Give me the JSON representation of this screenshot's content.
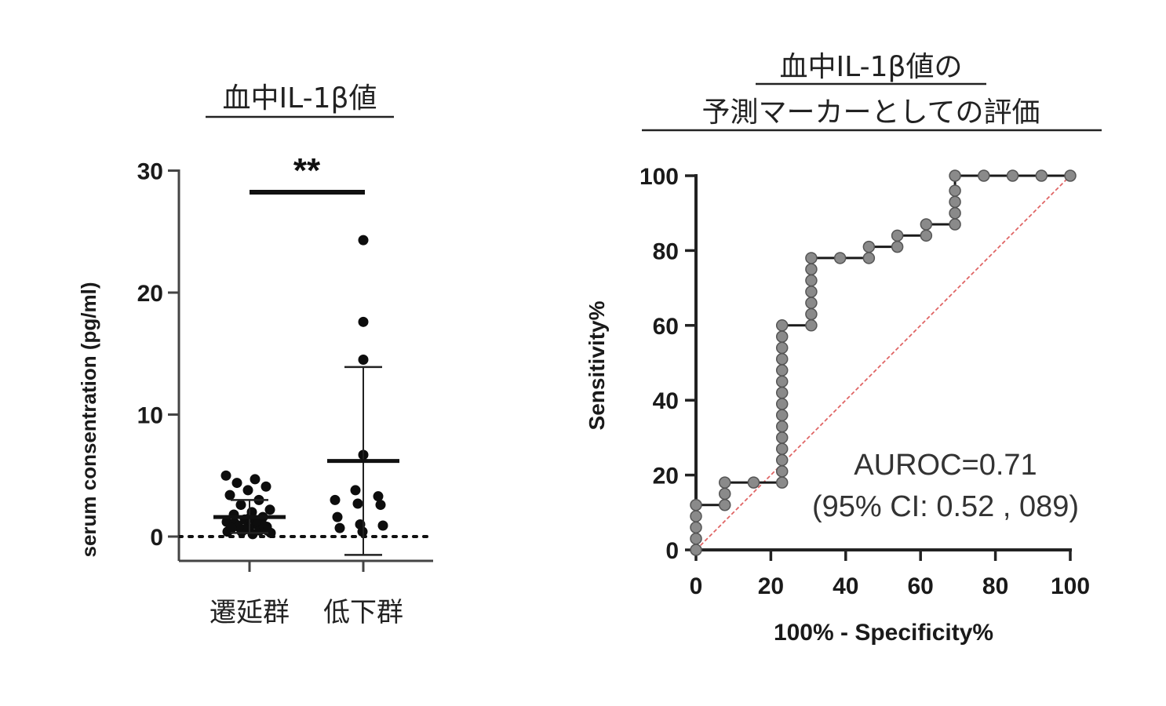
{
  "chart_data": [
    {
      "type": "scatter",
      "title": "血中IL-1β値",
      "ylabel": "serum consentration (pg/ml)",
      "ylim": [
        -2,
        30
      ],
      "yticks": [
        "0",
        "10",
        "20",
        "30"
      ],
      "categories": [
        "遷延群",
        "低下群"
      ],
      "groups": [
        {
          "name": "遷延群",
          "values": [
            5.0,
            4.7,
            4.4,
            4.1,
            3.8,
            3.4,
            3.0,
            2.6,
            2.2,
            2.0,
            1.8,
            1.6,
            1.4,
            1.2,
            1.0,
            0.9,
            0.8,
            0.7,
            0.6,
            0.5,
            0.4,
            0.3,
            0.2,
            1.1,
            0.9,
            0.6,
            0.4,
            1.3,
            0.8,
            0.5,
            1.5,
            0.7
          ],
          "mean": 1.6,
          "sd_upper": 3.0,
          "sd_lower": 0.3
        },
        {
          "name": "低下群",
          "values": [
            24.3,
            17.6,
            14.5,
            6.7,
            3.8,
            3.3,
            3.0,
            2.7,
            2.6,
            1.6,
            1.0,
            0.9,
            0.7,
            0.4
          ],
          "mean": 6.2,
          "sd_upper": 13.9,
          "sd_lower": -1.5
        }
      ],
      "significance": "**",
      "baseline": 0
    },
    {
      "type": "line",
      "title_line1": "血中IL-1β値の",
      "title_line2": "予測マーカーとしての評価",
      "xlabel": "100% - Specificity%",
      "ylabel": "Sensitivity%",
      "xlim": [
        0,
        100
      ],
      "ylim": [
        0,
        100
      ],
      "xticks": [
        "0",
        "20",
        "40",
        "60",
        "80",
        "100"
      ],
      "yticks": [
        "0",
        "20",
        "40",
        "60",
        "80",
        "100"
      ],
      "roc_points": [
        [
          0,
          0
        ],
        [
          0,
          3
        ],
        [
          0,
          6
        ],
        [
          0,
          9
        ],
        [
          0,
          12
        ],
        [
          7.7,
          12
        ],
        [
          7.7,
          15
        ],
        [
          7.7,
          18
        ],
        [
          15.4,
          18
        ],
        [
          23,
          18
        ],
        [
          23,
          21
        ],
        [
          23,
          24
        ],
        [
          23,
          27
        ],
        [
          23,
          30
        ],
        [
          23,
          33
        ],
        [
          23,
          36
        ],
        [
          23,
          39
        ],
        [
          23,
          42
        ],
        [
          23,
          45
        ],
        [
          23,
          48
        ],
        [
          23,
          51
        ],
        [
          23,
          54
        ],
        [
          23,
          57
        ],
        [
          23,
          60
        ],
        [
          30.8,
          60
        ],
        [
          30.8,
          63
        ],
        [
          30.8,
          66
        ],
        [
          30.8,
          69
        ],
        [
          30.8,
          72
        ],
        [
          30.8,
          75
        ],
        [
          30.8,
          78
        ],
        [
          38.5,
          78
        ],
        [
          46.2,
          78
        ],
        [
          46.2,
          81
        ],
        [
          53.8,
          81
        ],
        [
          53.8,
          84
        ],
        [
          61.5,
          84
        ],
        [
          61.5,
          87
        ],
        [
          69.2,
          87
        ],
        [
          69.2,
          90
        ],
        [
          69.2,
          93
        ],
        [
          69.2,
          96
        ],
        [
          69.2,
          100
        ],
        [
          76.9,
          100
        ],
        [
          84.6,
          100
        ],
        [
          92.3,
          100
        ],
        [
          100,
          100
        ]
      ],
      "reference_line": [
        [
          0,
          0
        ],
        [
          100,
          100
        ]
      ],
      "annotation_line1": "AUROC=0.71",
      "annotation_line2": "(95% CI: 0.52 , 089)",
      "colors": {
        "roc_line": "#1a1a1a",
        "roc_marker": "#8a8a8a",
        "reference": "#e06666"
      }
    }
  ]
}
